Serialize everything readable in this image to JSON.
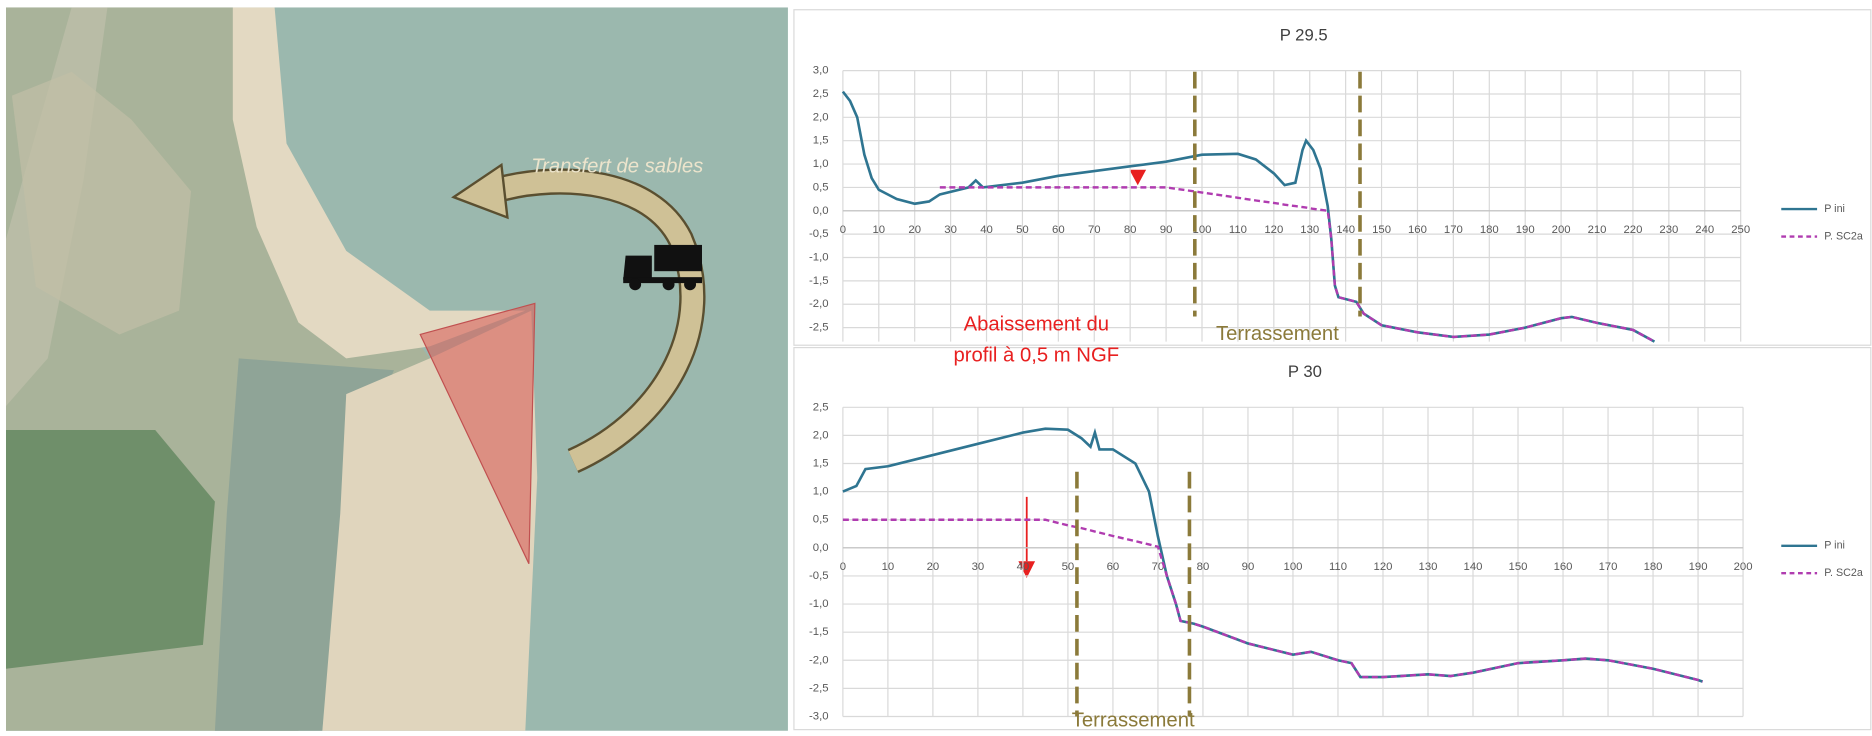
{
  "map": {
    "arrow_label": "Transfert de sables"
  },
  "chart_data": [
    {
      "type": "line",
      "title": "P 29.5",
      "x": [
        0,
        2,
        4,
        6,
        8,
        10,
        15,
        20,
        24,
        27,
        35,
        37,
        39,
        50,
        60,
        70,
        80,
        90,
        100,
        110,
        115,
        120,
        123,
        126,
        128,
        129,
        131,
        133,
        135,
        136,
        137,
        138,
        143,
        145,
        150,
        160,
        170,
        180,
        190,
        200,
        203,
        210,
        220,
        226
      ],
      "series": [
        {
          "name": "P ini",
          "color": "#2f7591",
          "style": "solid",
          "values": [
            2.55,
            2.35,
            2.0,
            1.2,
            0.7,
            0.45,
            0.25,
            0.15,
            0.2,
            0.35,
            0.5,
            0.65,
            0.5,
            0.6,
            0.75,
            0.85,
            0.95,
            1.05,
            1.2,
            1.22,
            1.1,
            0.8,
            0.55,
            0.6,
            1.3,
            1.5,
            1.3,
            0.9,
            0.1,
            -0.6,
            -1.6,
            -1.85,
            -1.95,
            -2.2,
            -2.45,
            -2.6,
            -2.7,
            -2.65,
            -2.5,
            -2.3,
            -2.27,
            -2.4,
            -2.55,
            -2.8
          ]
        },
        {
          "name": "P. SC2a",
          "color": "#b03cb0",
          "style": "dashed",
          "values": [
            null,
            null,
            null,
            null,
            null,
            null,
            null,
            null,
            null,
            0.5,
            0.5,
            0.5,
            0.5,
            0.5,
            0.5,
            0.5,
            0.5,
            0.5,
            0.39,
            0.28,
            0.22,
            0.17,
            0.13,
            0.1,
            0.08,
            0.07,
            0.04,
            0.02,
            0.0,
            -0.6,
            -1.6,
            -1.85,
            -1.95,
            -2.2,
            -2.45,
            -2.6,
            -2.7,
            -2.65,
            -2.5,
            -2.3,
            -2.27,
            -2.4,
            -2.55,
            -2.8
          ]
        }
      ],
      "xlim": [
        0,
        250
      ],
      "xticks": [
        0,
        10,
        20,
        30,
        40,
        50,
        60,
        70,
        80,
        90,
        100,
        110,
        120,
        130,
        140,
        150,
        160,
        170,
        180,
        190,
        200,
        210,
        220,
        230,
        240,
        250
      ],
      "ylim": [
        -2.8,
        3.0
      ],
      "yticks": [
        {
          "value": 3.0,
          "label": "3,0"
        },
        {
          "value": 2.5,
          "label": "2,5"
        },
        {
          "value": 2.0,
          "label": "2,0"
        },
        {
          "value": 1.5,
          "label": "1,5"
        },
        {
          "value": 1.0,
          "label": "1,0"
        },
        {
          "value": 0.5,
          "label": "0,5"
        },
        {
          "value": 0.0,
          "label": "0,0"
        },
        {
          "value": -0.5,
          "label": "-0,5"
        },
        {
          "value": -1.0,
          "label": "-1,0"
        },
        {
          "value": -1.5,
          "label": "-1,5"
        },
        {
          "value": -2.0,
          "label": "-2,0"
        },
        {
          "value": -2.5,
          "label": "-2,5"
        }
      ],
      "grid": true,
      "legend": "right",
      "markers": {
        "label": "Terrassement",
        "x": [
          98,
          144
        ]
      },
      "annotation": [
        "Abaissement du",
        "profil à 0,5 m NGF"
      ]
    },
    {
      "type": "line",
      "title": "P 30",
      "x": [
        0,
        3,
        5,
        10,
        20,
        30,
        40,
        45,
        50,
        53,
        55,
        56,
        57,
        60,
        65,
        68,
        70,
        72,
        74,
        75,
        78,
        80,
        90,
        100,
        104,
        110,
        113,
        115,
        120,
        130,
        135,
        140,
        150,
        160,
        165,
        170,
        180,
        190,
        191
      ],
      "series": [
        {
          "name": "P ini",
          "color": "#2f7591",
          "style": "solid",
          "values": [
            1.0,
            1.1,
            1.4,
            1.45,
            1.65,
            1.85,
            2.05,
            2.12,
            2.1,
            1.95,
            1.8,
            2.05,
            1.75,
            1.75,
            1.5,
            1.0,
            0.2,
            -0.5,
            -1.0,
            -1.3,
            -1.35,
            -1.4,
            -1.7,
            -1.9,
            -1.85,
            -2.0,
            -2.05,
            -2.3,
            -2.3,
            -2.25,
            -2.28,
            -2.22,
            -2.05,
            -2.0,
            -1.97,
            -2.0,
            -2.15,
            -2.35,
            -2.38
          ]
        },
        {
          "name": "P. SC2a",
          "color": "#b03cb0",
          "style": "dashed",
          "values": [
            0.5,
            0.5,
            0.5,
            0.5,
            0.5,
            0.5,
            0.5,
            0.5,
            0.4,
            0.35,
            0.31,
            0.29,
            0.27,
            0.21,
            0.12,
            0.06,
            0.02,
            -0.5,
            -1.0,
            -1.3,
            -1.35,
            -1.4,
            -1.7,
            -1.9,
            -1.85,
            -2.0,
            -2.05,
            -2.3,
            -2.3,
            -2.25,
            -2.28,
            -2.22,
            -2.05,
            -2.0,
            -1.97,
            -2.0,
            -2.15,
            -2.35,
            -2.38
          ]
        }
      ],
      "xlim": [
        0,
        200
      ],
      "xticks": [
        0,
        10,
        20,
        30,
        40,
        50,
        60,
        70,
        80,
        90,
        100,
        110,
        120,
        130,
        140,
        150,
        160,
        170,
        180,
        190,
        200
      ],
      "ylim": [
        -3.0,
        2.5
      ],
      "yticks": [
        {
          "value": 2.5,
          "label": "2,5"
        },
        {
          "value": 2.0,
          "label": "2,0"
        },
        {
          "value": 1.5,
          "label": "1,5"
        },
        {
          "value": 1.0,
          "label": "1,0"
        },
        {
          "value": 0.5,
          "label": "0,5"
        },
        {
          "value": 0.0,
          "label": "0,0"
        },
        {
          "value": -0.5,
          "label": "-0,5"
        },
        {
          "value": -1.0,
          "label": "-1,0"
        },
        {
          "value": -1.5,
          "label": "-1,5"
        },
        {
          "value": -2.0,
          "label": "-2,0"
        },
        {
          "value": -2.5,
          "label": "-2,5"
        },
        {
          "value": -3.0,
          "label": "-3,0"
        }
      ],
      "grid": true,
      "legend": "right",
      "markers": {
        "label": "Terrassement",
        "x": [
          52,
          77
        ]
      }
    }
  ]
}
